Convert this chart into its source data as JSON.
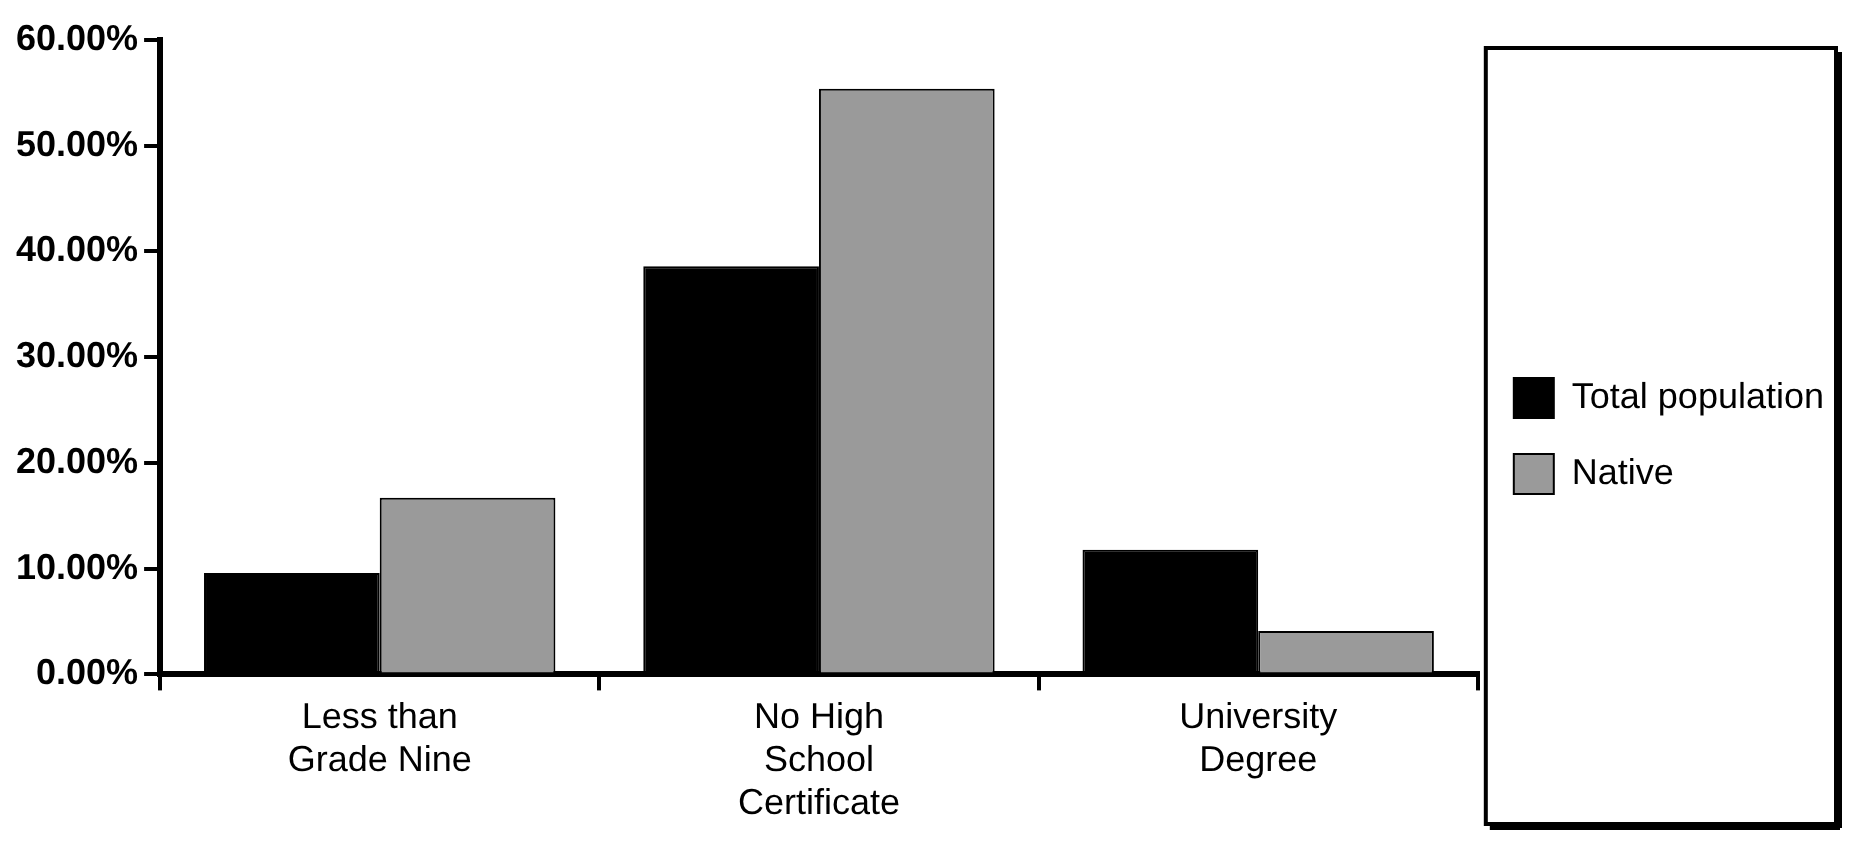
{
  "chart_data": {
    "type": "bar",
    "categories": [
      "Less than Grade Nine",
      "No High School Certificate",
      "University Degree"
    ],
    "series": [
      {
        "name": "Total population",
        "color": "#000000",
        "values": [
          9.6,
          38.6,
          11.8
        ]
      },
      {
        "name": "Native",
        "color": "#9a9a9a",
        "values": [
          16.7,
          55.4,
          4.1
        ]
      }
    ],
    "ylim": [
      0,
      60
    ],
    "yticks": [
      {
        "value": 0,
        "label": "0.00%"
      },
      {
        "value": 10,
        "label": "10.00%"
      },
      {
        "value": 20,
        "label": "20.00%"
      },
      {
        "value": 30,
        "label": "30.00%"
      },
      {
        "value": 40,
        "label": "40.00%"
      },
      {
        "value": 50,
        "label": "50.00%"
      },
      {
        "value": 60,
        "label": "60.00%"
      }
    ],
    "grid": false,
    "legend": "right"
  }
}
